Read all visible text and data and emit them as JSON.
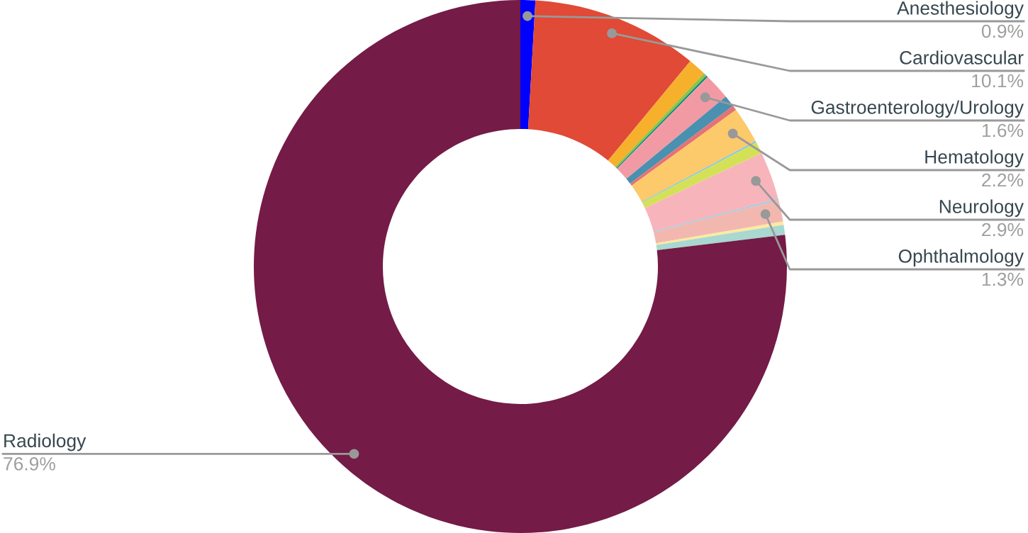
{
  "chart_data": {
    "type": "donut",
    "categories": [
      "Anesthesiology",
      "Cardiovascular",
      null,
      null,
      null,
      "Gastroenterology/Urology",
      null,
      null,
      "Hematology",
      null,
      null,
      "Neurology",
      null,
      "Ophthalmology",
      null,
      null,
      "Radiology"
    ],
    "values": [
      0.9,
      10.1,
      1.1,
      0.2,
      0.1,
      1.6,
      0.7,
      0.3,
      2.2,
      0.1,
      0.7,
      2.9,
      0.1,
      1.3,
      0.2,
      0.6,
      76.9
    ],
    "value_labels": [
      "0.9%",
      "10.1%",
      null,
      null,
      null,
      "1.6%",
      null,
      null,
      "2.2%",
      null,
      null,
      "2.9%",
      null,
      "1.3%",
      null,
      null,
      "76.9%"
    ],
    "colors": [
      "#0000ff",
      "#e04a36",
      "#f6b02c",
      "#8bc34a",
      "#00897b",
      "#f29aa4",
      "#4a90b0",
      "#e57373",
      "#fcc96b",
      "#7fc8e6",
      "#d4e157",
      "#f7b5bb",
      "#9ecae1",
      "#f2b8b0",
      "#fde9a0",
      "#a8d8d0",
      "#741b47"
    ],
    "legend": false
  }
}
